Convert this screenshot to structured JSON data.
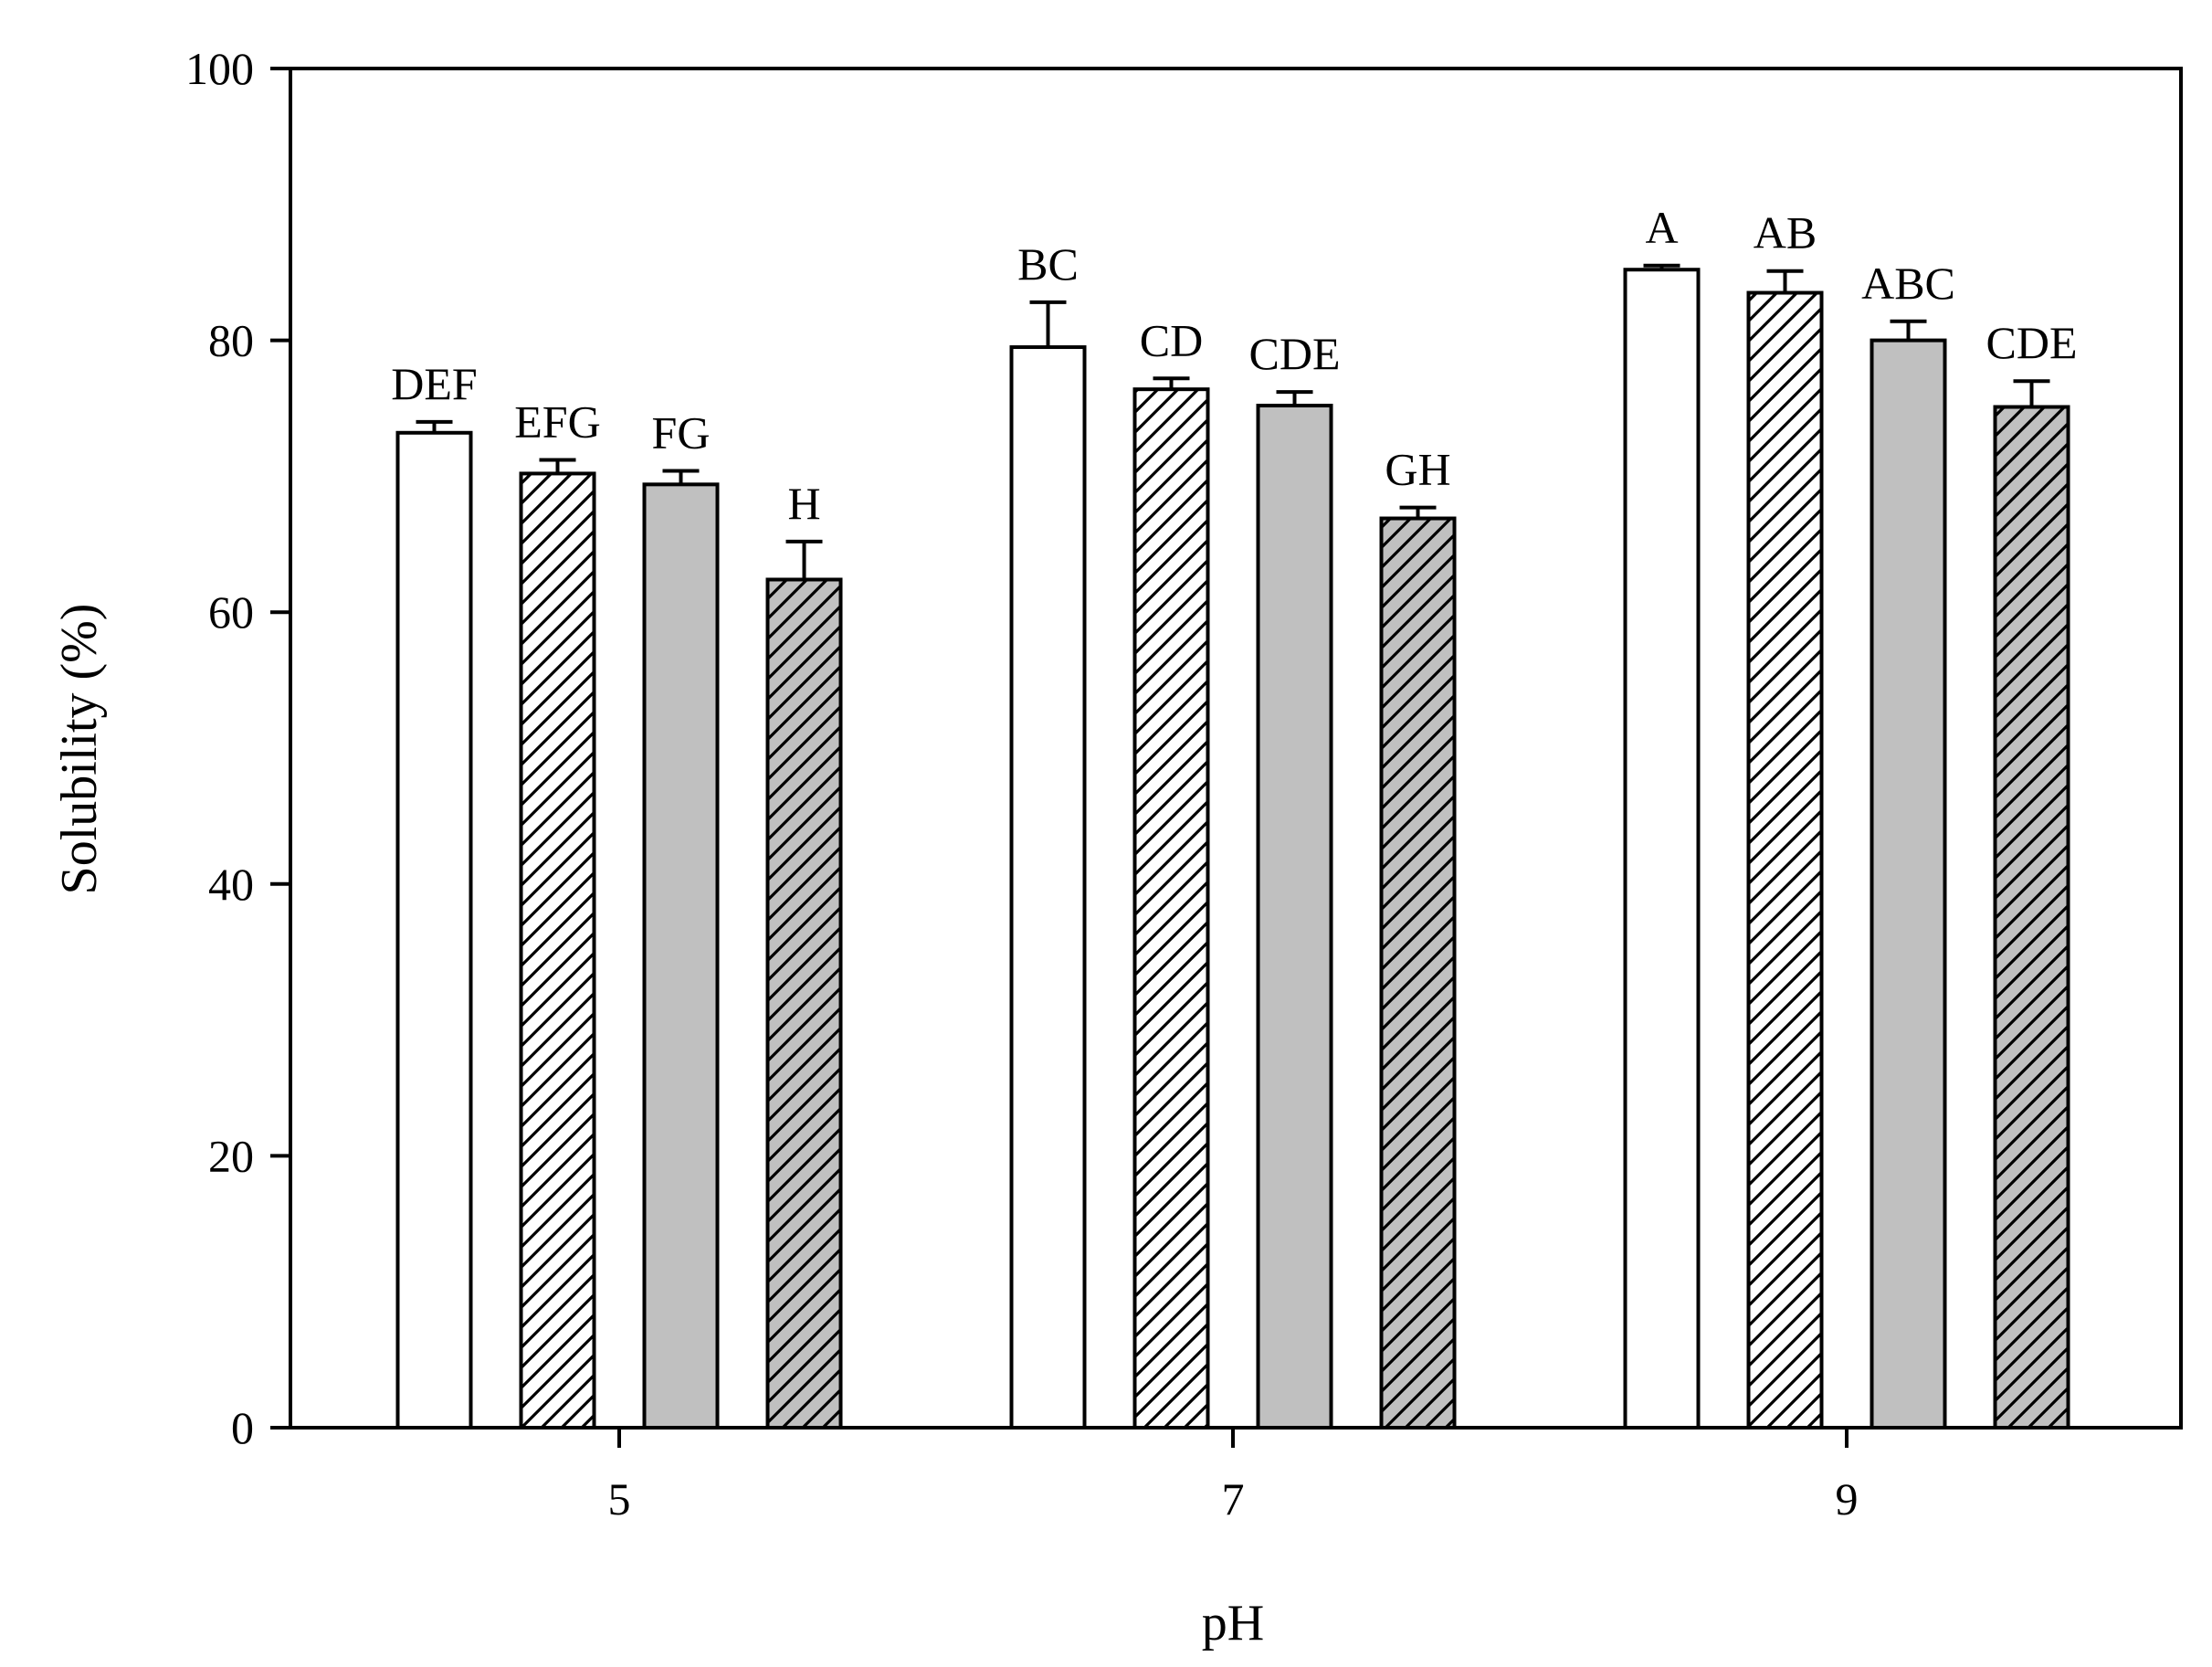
{
  "chart_data": {
    "type": "bar",
    "xlabel": "pH",
    "ylabel": "Solubility (%)",
    "ylim": [
      0,
      100
    ],
    "yticks": [
      0,
      20,
      40,
      60,
      80,
      100
    ],
    "grid": false,
    "categories": [
      "5",
      "7",
      "9"
    ],
    "series": [
      {
        "values": [
          73.2,
          79.5,
          85.2
        ],
        "errors": [
          0.8,
          3.3,
          0.3
        ],
        "labels": [
          "DEF",
          "BC",
          "A"
        ],
        "fill": "#ffffff",
        "hatch": false
      },
      {
        "values": [
          70.2,
          76.4,
          83.5
        ],
        "errors": [
          1.0,
          0.8,
          1.6
        ],
        "labels": [
          "EFG",
          "CD",
          "AB"
        ],
        "fill": "#ffffff",
        "hatch": true
      },
      {
        "values": [
          69.4,
          75.2,
          80.0
        ],
        "errors": [
          1.0,
          1.0,
          1.4
        ],
        "labels": [
          "FG",
          "CDE",
          "ABC"
        ],
        "fill": "#c0c0c0",
        "hatch": false
      },
      {
        "values": [
          62.4,
          66.9,
          75.1
        ],
        "errors": [
          2.8,
          0.8,
          1.9
        ],
        "labels": [
          "H",
          "GH",
          "CDE"
        ],
        "fill": "#c0c0c0",
        "hatch": true
      }
    ]
  }
}
